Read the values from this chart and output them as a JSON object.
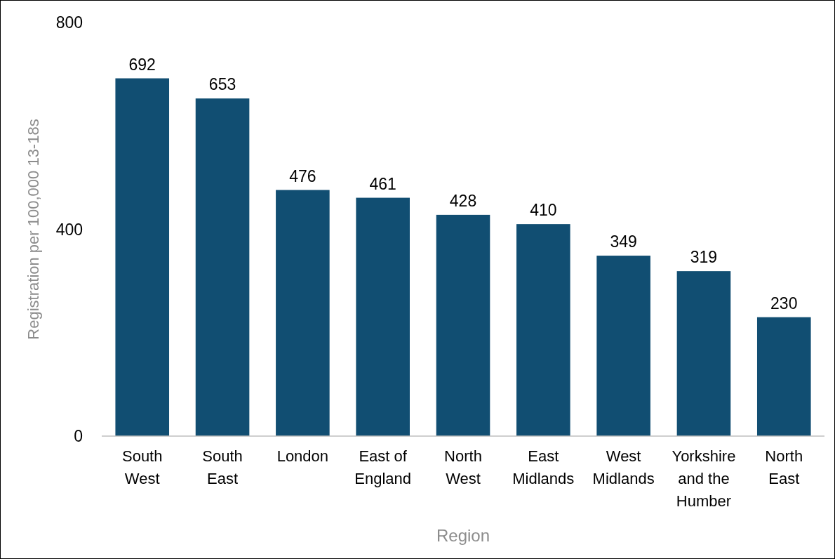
{
  "chart_data": {
    "type": "bar",
    "xlabel": "Region",
    "ylabel": "Registration per 100,000 13-18s",
    "categories": [
      "South West",
      "South East",
      "London",
      "East of England",
      "North West",
      "East Midlands",
      "West Midlands",
      "Yorkshire and the Humber",
      "North East"
    ],
    "values": [
      692,
      653,
      476,
      461,
      428,
      410,
      349,
      319,
      230
    ],
    "color": "#114e72",
    "ylim": [
      0,
      800
    ],
    "yticks": [
      0,
      400,
      800
    ],
    "grid": false,
    "data_labels": true
  }
}
